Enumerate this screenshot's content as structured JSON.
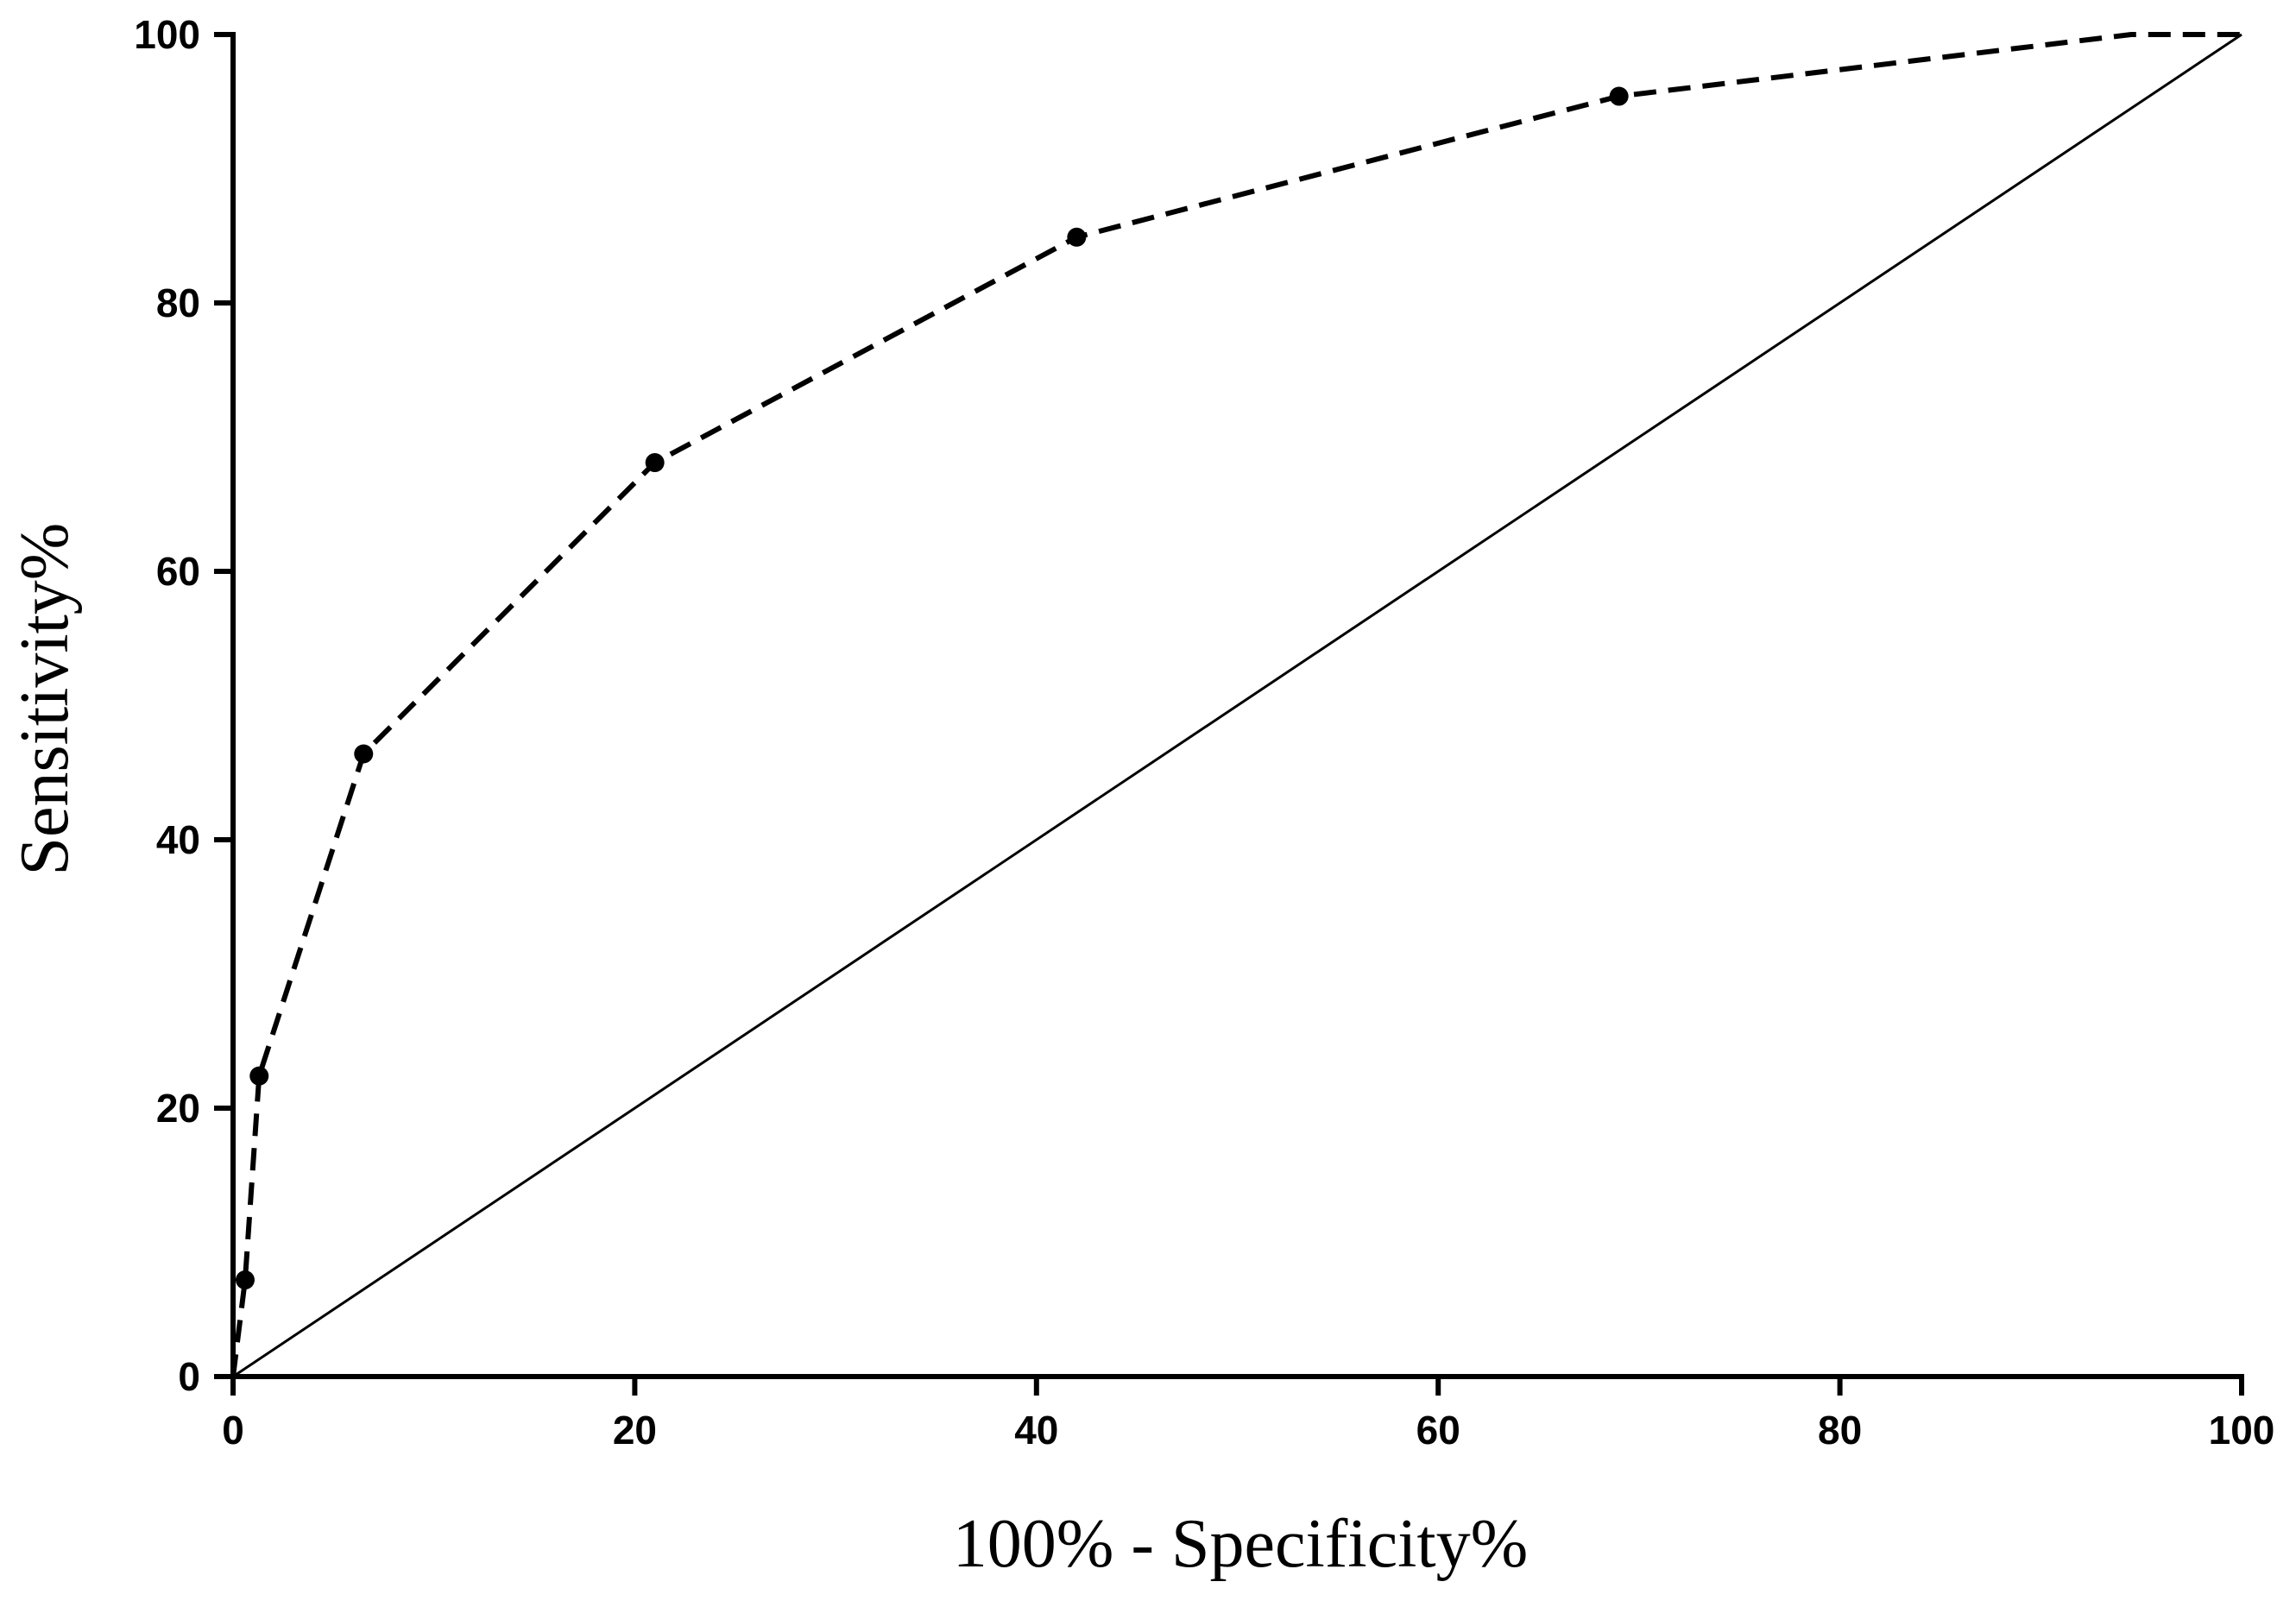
{
  "chart_data": {
    "type": "line",
    "title": "",
    "xlabel": "100% - Specificity%",
    "ylabel": "Sensitivity%",
    "xlim": [
      0,
      100
    ],
    "ylim": [
      0,
      100
    ],
    "xticks": [
      0,
      20,
      40,
      60,
      80,
      100
    ],
    "yticks": [
      0,
      20,
      40,
      60,
      80,
      100
    ],
    "grid": false,
    "legend": "none",
    "series": [
      {
        "style": "dashed",
        "markers": "circle",
        "color": "#000000",
        "x": [
          0,
          0.6,
          1.3,
          6.5,
          21,
          42,
          69,
          94.5,
          100
        ],
        "y": [
          0,
          7.2,
          22.4,
          46.4,
          68.1,
          84.9,
          95.4,
          100,
          100
        ],
        "marked": [
          false,
          true,
          true,
          true,
          true,
          true,
          true,
          false,
          false
        ]
      },
      {
        "style": "solid",
        "markers": "none",
        "color": "#000000",
        "x": [
          0,
          100
        ],
        "y": [
          0,
          100
        ]
      }
    ]
  }
}
